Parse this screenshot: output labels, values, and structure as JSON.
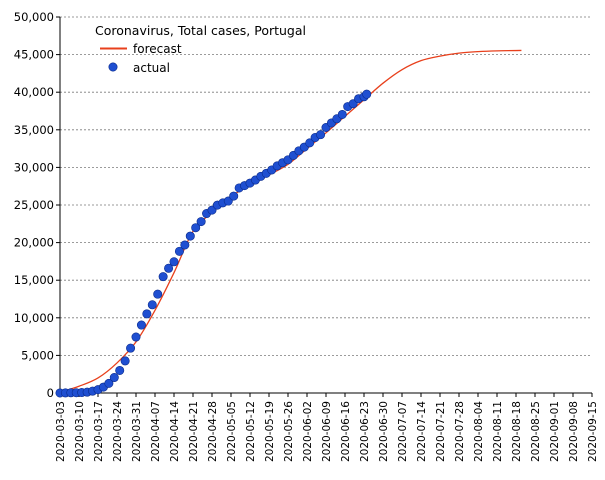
{
  "chart_data": {
    "type": "line",
    "title": "Coronavirus, Total cases, Portugal",
    "xlabel": "",
    "ylabel": "",
    "x_start": "2020-03-03",
    "x_end": "2020-09-15",
    "ylim": [
      0,
      50000
    ],
    "y_ticks": [
      0,
      5000,
      10000,
      15000,
      20000,
      25000,
      30000,
      35000,
      40000,
      45000,
      50000
    ],
    "y_tick_labels": [
      "0",
      "5,000",
      "10,000",
      "15,000",
      "20,000",
      "25,000",
      "30,000",
      "35,000",
      "40,000",
      "45,000",
      "50,000"
    ],
    "x_tick_labels": [
      "2020-03-03",
      "2020-03-10",
      "2020-03-17",
      "2020-03-24",
      "2020-03-31",
      "2020-04-07",
      "2020-04-14",
      "2020-04-21",
      "2020-04-28",
      "2020-05-05",
      "2020-05-12",
      "2020-05-19",
      "2020-05-26",
      "2020-06-02",
      "2020-06-09",
      "2020-06-16",
      "2020-06-23",
      "2020-06-30",
      "2020-07-07",
      "2020-07-14",
      "2020-07-21",
      "2020-07-28",
      "2020-08-04",
      "2020-08-11",
      "2020-08-18",
      "2020-08-25",
      "2020-09-01",
      "2020-09-08",
      "2020-09-15"
    ],
    "grid": "horizontal dashed",
    "legend_position": "top-left",
    "series": [
      {
        "name": "forecast",
        "style": "line",
        "color": "#e8401c",
        "x": [
          "2020-03-03",
          "2020-03-10",
          "2020-03-17",
          "2020-03-24",
          "2020-03-31",
          "2020-04-07",
          "2020-04-14",
          "2020-04-21",
          "2020-04-28",
          "2020-05-05",
          "2020-05-12",
          "2020-05-19",
          "2020-05-26",
          "2020-06-02",
          "2020-06-09",
          "2020-06-16",
          "2020-06-23",
          "2020-06-30",
          "2020-07-07",
          "2020-07-14",
          "2020-07-21",
          "2020-07-28",
          "2020-08-04",
          "2020-08-11",
          "2020-08-20"
        ],
        "values": [
          100,
          900,
          2000,
          4000,
          6800,
          11000,
          16000,
          21500,
          24000,
          26100,
          27700,
          29000,
          30400,
          32500,
          34600,
          36800,
          39000,
          41200,
          43000,
          44200,
          44800,
          45200,
          45400,
          45500,
          45550
        ]
      },
      {
        "name": "actual",
        "style": "markers",
        "color": "#1f4fd1",
        "x": [
          "2020-03-03",
          "2020-03-05",
          "2020-03-07",
          "2020-03-09",
          "2020-03-11",
          "2020-03-13",
          "2020-03-15",
          "2020-03-17",
          "2020-03-19",
          "2020-03-21",
          "2020-03-23",
          "2020-03-25",
          "2020-03-27",
          "2020-03-29",
          "2020-03-31",
          "2020-04-02",
          "2020-04-04",
          "2020-04-06",
          "2020-04-08",
          "2020-04-10",
          "2020-04-12",
          "2020-04-14",
          "2020-04-16",
          "2020-04-18",
          "2020-04-20",
          "2020-04-22",
          "2020-04-24",
          "2020-04-26",
          "2020-04-28",
          "2020-04-30",
          "2020-05-02",
          "2020-05-04",
          "2020-05-06",
          "2020-05-08",
          "2020-05-10",
          "2020-05-12",
          "2020-05-14",
          "2020-05-16",
          "2020-05-18",
          "2020-05-20",
          "2020-05-22",
          "2020-05-24",
          "2020-05-26",
          "2020-05-28",
          "2020-05-30",
          "2020-06-01",
          "2020-06-03",
          "2020-06-05",
          "2020-06-07",
          "2020-06-09",
          "2020-06-11",
          "2020-06-13",
          "2020-06-15",
          "2020-06-17",
          "2020-06-19",
          "2020-06-21",
          "2020-06-23",
          "2020-06-24"
        ],
        "values": [
          4,
          13,
          30,
          39,
          59,
          112,
          245,
          448,
          785,
          1280,
          2060,
          2995,
          4268,
          5962,
          7443,
          9034,
          10524,
          11730,
          13141,
          15472,
          16585,
          17448,
          18841,
          19685,
          20863,
          21982,
          22797,
          23864,
          24322,
          24987,
          25282,
          25524,
          26182,
          27268,
          27581,
          27913,
          28319,
          28810,
          29209,
          29660,
          30200,
          30623,
          31007,
          31596,
          32203,
          32700,
          33261,
          33969,
          34351,
          35306,
          35910,
          36463,
          37036,
          38089,
          38464,
          39133,
          39392,
          39737
        ]
      }
    ]
  }
}
